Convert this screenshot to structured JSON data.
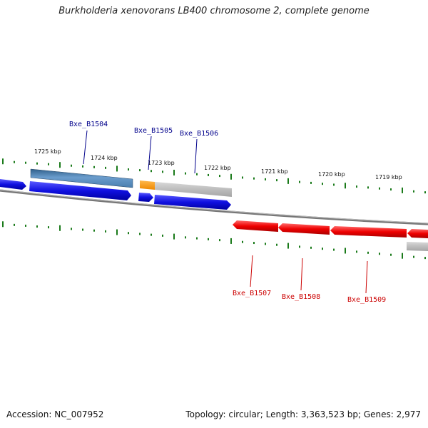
{
  "title": "Burkholderia xenovorans LB400 chromosome 2, complete genome",
  "footer": {
    "accession": "Accession: NC_007952",
    "summary": "Topology: circular; Length: 3,363,523 bp; Genes: 2,977"
  },
  "colors": {
    "forward_gene": "#1010e0",
    "reverse_gene": "#ee0000",
    "forward_cds": "#5588bb",
    "highlight": "#ff9900",
    "gray_feature": "#bdbdbd",
    "backbone": "#888888",
    "tick": "#1a7a1a",
    "forward_label": "#00008b",
    "reverse_label": "#cc0000"
  },
  "scale_ticks": [
    "1725 kbp",
    "1724 kbp",
    "1723 kbp",
    "1722 kbp",
    "1721 kbp",
    "1720 kbp",
    "1719 kbp"
  ],
  "genes": {
    "forward": [
      "Bxe_B1504",
      "Bxe_B1505",
      "Bxe_B1506"
    ],
    "reverse": [
      "Bxe_B1507",
      "Bxe_B1508",
      "Bxe_B1509"
    ]
  }
}
